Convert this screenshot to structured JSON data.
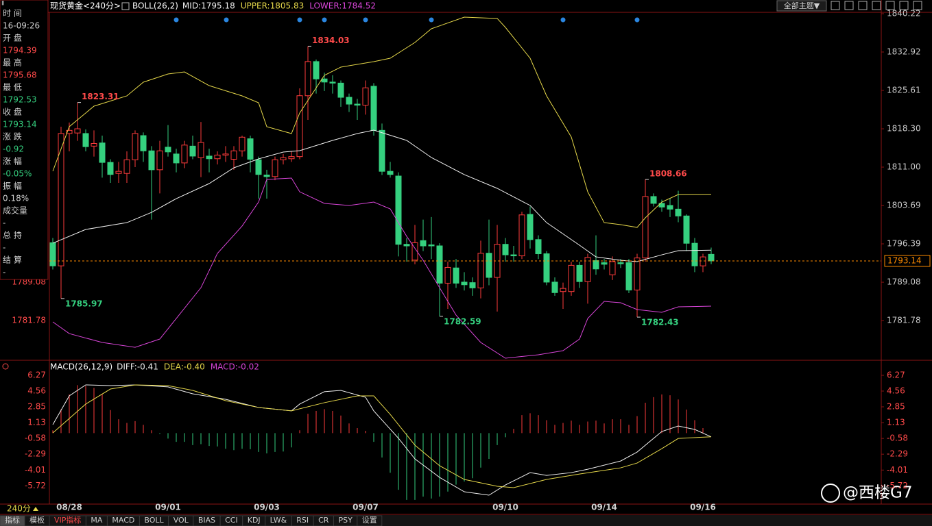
{
  "chart_data": [
    {
      "type": "candlestick",
      "title": "现货黄金<240分>",
      "indicator": "BOLL(26,2)",
      "categories": [
        null,
        null,
        "08/28",
        null,
        null,
        null,
        null,
        null,
        null,
        null,
        null,
        null,
        null,
        null,
        "09/01",
        null,
        null,
        null,
        null,
        null,
        null,
        null,
        null,
        null,
        null,
        null,
        "09/03",
        null,
        null,
        null,
        null,
        null,
        null,
        null,
        null,
        null,
        null,
        null,
        "09/07",
        null,
        null,
        null,
        null,
        null,
        null,
        null,
        null,
        null,
        null,
        null,
        null,
        null,
        null,
        null,
        null,
        "09/10",
        null,
        null,
        null,
        null,
        null,
        null,
        null,
        null,
        null,
        null,
        null,
        "09/14",
        null,
        null,
        null,
        null,
        null,
        null,
        null,
        null,
        null,
        null,
        null,
        "09/16",
        null
      ],
      "open": [
        1796.6,
        1792.2,
        1817.4,
        1817.5,
        1817.4,
        1815.0,
        1815.6,
        1811.9,
        1809.8,
        1809.8,
        1812.4,
        1817.0,
        1814.1,
        1810.5,
        1814.8,
        1813.5,
        1811.8,
        1815.0,
        1812.8,
        1813.1,
        1812.6,
        1813.3,
        1812.5,
        1814.1,
        1816.4,
        1812.4,
        1809.5,
        1809.2,
        1812.4,
        1812.6,
        1813.0,
        1824.6,
        1831.1,
        1827.8,
        1827.2,
        1827.0,
        1824.3,
        1823.0,
        1822.8,
        1826.4,
        1818.0,
        1810.2,
        1809.3,
        1796.3,
        1793.3,
        1797.0,
        1796.2,
        1796.0,
        1788.9,
        1791.8,
        1789.1,
        1789.0,
        1788.0,
        1794.6,
        1790.0,
        1796.3,
        1794.3,
        1794.1,
        1802.0,
        1797.2,
        1794.5,
        1789.1,
        1787.3,
        1787.3,
        1792.3,
        1789.2,
        1793.2,
        1792.8,
        1790.5,
        1792.8,
        1792.8,
        1787.6,
        1793.7,
        1805.4,
        1804.1,
        1803.7,
        1803.0,
        1801.7,
        1796.5,
        1792.2,
        1794.39
      ],
      "high": [
        1797.5,
        1818.7,
        1819.5,
        1823.31,
        1818.2,
        1818.0,
        1817.0,
        1812.5,
        1812.0,
        1814.0,
        1818.0,
        1817.6,
        1815.0,
        1816.0,
        1819.0,
        1814.5,
        1816.0,
        1817.0,
        1819.6,
        1814.5,
        1814.0,
        1815.0,
        1815.0,
        1817.0,
        1817.0,
        1813.0,
        1810.5,
        1813.0,
        1813.5,
        1814.0,
        1826.0,
        1834.03,
        1831.5,
        1829.0,
        1828.5,
        1827.5,
        1825.0,
        1824.0,
        1827.5,
        1827.0,
        1819.3,
        1812.0,
        1810.0,
        1797.5,
        1800.0,
        1801.0,
        1801.5,
        1796.5,
        1793.0,
        1793.5,
        1791.0,
        1790.0,
        1797.0,
        1801.0,
        1800.0,
        1797.5,
        1796.0,
        1802.5,
        1803.5,
        1798.0,
        1795.0,
        1790.0,
        1789.0,
        1793.0,
        1793.0,
        1794.5,
        1798.0,
        1793.5,
        1794.0,
        1793.5,
        1793.5,
        1794.5,
        1808.66,
        1806.0,
        1804.8,
        1805.0,
        1806.5,
        1802.0,
        1797.5,
        1794.5,
        1795.68
      ],
      "low": [
        1791.5,
        1785.97,
        1814.0,
        1816.0,
        1814.0,
        1813.0,
        1809.0,
        1808.0,
        1808.0,
        1808.0,
        1811.0,
        1812.0,
        1801.0,
        1806.0,
        1813.0,
        1810.0,
        1810.8,
        1812.5,
        1809.1,
        1810.0,
        1811.5,
        1812.0,
        1810.5,
        1813.0,
        1810.0,
        1805.0,
        1805.0,
        1808.5,
        1811.5,
        1812.0,
        1812.5,
        1820.0,
        1825.0,
        1825.5,
        1825.0,
        1822.5,
        1821.5,
        1820.0,
        1821.0,
        1817.0,
        1809.5,
        1809.0,
        1794.0,
        1793.0,
        1792.5,
        1795.0,
        1793.5,
        1782.59,
        1784.0,
        1788.0,
        1787.5,
        1786.5,
        1786.0,
        1788.5,
        1783.5,
        1793.0,
        1793.0,
        1793.5,
        1795.5,
        1793.5,
        1788.5,
        1786.5,
        1784.0,
        1786.5,
        1788.0,
        1785.0,
        1790.5,
        1791.5,
        1789.5,
        1791.8,
        1787.0,
        1782.43,
        1793.0,
        1803.5,
        1802.5,
        1801.5,
        1800.5,
        1795.0,
        1791.0,
        1791.0,
        1792.53
      ],
      "close": [
        1792.2,
        1817.4,
        1818.0,
        1818.3,
        1814.9,
        1815.5,
        1811.9,
        1809.6,
        1810.2,
        1812.4,
        1817.4,
        1814.1,
        1810.5,
        1814.1,
        1813.9,
        1811.8,
        1815.2,
        1813.1,
        1815.7,
        1812.6,
        1813.3,
        1813.5,
        1814.1,
        1816.7,
        1812.5,
        1809.6,
        1809.2,
        1812.4,
        1812.8,
        1813.0,
        1824.6,
        1831.1,
        1827.8,
        1827.2,
        1827.0,
        1824.3,
        1823.0,
        1822.8,
        1826.1,
        1818.0,
        1810.2,
        1809.6,
        1796.3,
        1796.0,
        1796.6,
        1796.0,
        1796.0,
        1788.9,
        1791.9,
        1788.9,
        1788.6,
        1788.0,
        1794.6,
        1790.0,
        1796.3,
        1794.3,
        1794.1,
        1801.9,
        1797.2,
        1794.5,
        1789.1,
        1787.1,
        1787.9,
        1792.3,
        1789.2,
        1793.8,
        1791.6,
        1792.5,
        1793.0,
        1792.6,
        1787.6,
        1793.7,
        1805.4,
        1804.1,
        1803.4,
        1803.0,
        1801.7,
        1796.5,
        1792.2,
        1793.9,
        1793.14
      ],
      "up_color": "#ff3c3c",
      "down_color": "#35d07f",
      "series": [
        {
          "name": "MID:1795.18",
          "color": "#f0f0f0",
          "x": [
            0,
            4,
            9,
            12,
            15,
            19,
            22,
            25,
            28,
            30,
            34,
            37,
            39,
            43,
            46,
            50,
            54,
            58,
            60,
            64,
            66,
            69,
            71,
            74,
            76,
            80
          ],
          "values": [
            1796.52,
            1799.13,
            1800.43,
            1802.39,
            1805.0,
            1807.87,
            1810.87,
            1812.57,
            1813.87,
            1814.13,
            1816.09,
            1817.39,
            1818.04,
            1816.09,
            1812.83,
            1809.57,
            1806.96,
            1803.7,
            1800.43,
            1796.13,
            1793.91,
            1793.26,
            1793.0,
            1794.3,
            1795.09,
            1795.18
          ]
        },
        {
          "name": "UPPER:1805.83",
          "color": "#e6d84a",
          "x": [
            0,
            2,
            5,
            9,
            11,
            14,
            16,
            19,
            23,
            25,
            26,
            29,
            30,
            33,
            35,
            39,
            41,
            44,
            46,
            50,
            54,
            55,
            58,
            60,
            63,
            65,
            67,
            69,
            71,
            72,
            74,
            76,
            80
          ],
          "values": [
            1810.22,
            1818.7,
            1822.61,
            1824.57,
            1827.18,
            1828.74,
            1829.13,
            1826.52,
            1824.57,
            1823.26,
            1818.7,
            1817.39,
            1821.31,
            1828.48,
            1830.05,
            1831.09,
            1831.74,
            1834.74,
            1837.35,
            1839.57,
            1839.31,
            1837.61,
            1831.74,
            1824.57,
            1816.74,
            1806.3,
            1800.43,
            1800.04,
            1799.52,
            1801.35,
            1804.35,
            1805.78,
            1805.83
          ]
        },
        {
          "name": "LOWER:1784.52",
          "color": "#d845d8",
          "x": [
            0,
            2,
            6,
            10,
            13,
            15,
            18,
            20,
            23,
            25,
            26,
            29,
            30,
            33,
            36,
            39,
            41,
            43,
            45,
            49,
            52,
            55,
            59,
            62,
            64,
            65,
            67,
            69,
            71,
            74,
            76,
            80
          ],
          "values": [
            1781.52,
            1779.3,
            1777.61,
            1776.69,
            1778.26,
            1782.17,
            1788.04,
            1794.56,
            1799.78,
            1804.35,
            1808.65,
            1808.91,
            1806.3,
            1804.09,
            1803.7,
            1804.35,
            1803.04,
            1797.82,
            1793.26,
            1782.82,
            1777.61,
            1774.61,
            1775.26,
            1776.04,
            1778.26,
            1782.17,
            1785.43,
            1785.17,
            1783.87,
            1783.35,
            1784.39,
            1784.52
          ]
        }
      ],
      "extremes": [
        1823.31,
        1834.03,
        1808.66,
        1785.97,
        1782.59,
        1782.43
      ],
      "ylim": [
        1774.35,
        1840.48
      ],
      "yticks": [
        1840.22,
        1832.92,
        1825.61,
        {
          "value": 1818.3,
          "label": "1818.30"
        },
        {
          "value": 1811,
          "label": "1811.00"
        },
        1803.69,
        1796.39,
        1789.08,
        1781.78
      ],
      "grid": false
    },
    {
      "type": "macd",
      "title": "MACD(26,12,9)",
      "histogram": {
        "name": "MACD:-0.02",
        "color": "#d845d8",
        "pos_color": "#ff3c3c",
        "neg_color": "#35d07f",
        "values": [
          0.3,
          2.6,
          4.2,
          5.2,
          5.1,
          4.9,
          4.2,
          2.5,
          1.5,
          1.1,
          1.3,
          0.9,
          0.3,
          -0.1,
          -0.6,
          -0.95,
          -0.95,
          -1.3,
          -1.2,
          -1.4,
          -1.45,
          -1.7,
          -1.85,
          -1.7,
          -1.75,
          -2.05,
          -2.2,
          -2.05,
          -2.0,
          -1.55,
          0.3,
          2.1,
          2.4,
          2.6,
          2.4,
          1.9,
          1.05,
          0.55,
          0.25,
          -0.95,
          -2.65,
          -4.3,
          -6.15,
          -7.25,
          -7.25,
          -6.9,
          -7.1,
          -6.9,
          -6.35,
          -5.6,
          -5.25,
          -4.9,
          -3.75,
          -2.8,
          -1.3,
          -0.45,
          0.45,
          1.95,
          2.15,
          1.95,
          1.4,
          0.9,
          1.1,
          1.35,
          0.9,
          1.25,
          1.35,
          1.05,
          1.5,
          1.5,
          0.9,
          1.85,
          3.3,
          3.9,
          4.2,
          4.1,
          3.65,
          2.55,
          1.4,
          0.55,
          -0.02
        ]
      },
      "series": [
        {
          "name": "DIFF:-0.41",
          "color": "#f0f0f0",
          "x": [
            0,
            2,
            4,
            7,
            10,
            14,
            17,
            21,
            25,
            29,
            30,
            33,
            35,
            38,
            39,
            42,
            44,
            47,
            50,
            53,
            55,
            58,
            60,
            63,
            65,
            69,
            71,
            74,
            76,
            78,
            80
          ],
          "values": [
            0.92,
            4.04,
            5.23,
            5.15,
            5.23,
            5.01,
            4.26,
            3.67,
            2.78,
            2.41,
            3.15,
            4.49,
            4.63,
            3.89,
            2.41,
            -0.56,
            -2.8,
            -4.81,
            -6.37,
            -6.74,
            -5.63,
            -4.29,
            -4.59,
            -4.29,
            -3.92,
            -3.03,
            -2.06,
            0.17,
            0.77,
            0.4,
            -0.41
          ]
        },
        {
          "name": "DEA:-0.40",
          "color": "#e6d84a",
          "x": [
            0,
            4,
            7,
            10,
            14,
            17,
            21,
            25,
            29,
            33,
            37,
            39,
            41,
            44,
            47,
            50,
            54,
            56,
            60,
            64,
            69,
            71,
            74,
            76,
            80
          ],
          "values": [
            0.02,
            3.15,
            4.78,
            5.23,
            5.15,
            4.63,
            3.52,
            2.78,
            2.41,
            3.3,
            4.04,
            4.04,
            2.03,
            -1.31,
            -3.54,
            -5.03,
            -5.77,
            -5.92,
            -5.03,
            -4.44,
            -3.77,
            -3.25,
            -1.69,
            -0.58,
            -0.4
          ]
        }
      ],
      "ylim": [
        -7.63,
        6.64
      ],
      "yticks": [
        6.27,
        4.56,
        2.85,
        1.13,
        -0.58,
        -2.29,
        -4.01,
        -5.72
      ],
      "grid": false
    }
  ],
  "header": {
    "theme_button": "全部主题▼"
  },
  "info_panel": [
    {
      "label": "时 间",
      "value": "16-09:26",
      "color": "#d0d0d0"
    },
    {
      "label": "开 盘",
      "value": "1794.39",
      "color": "#ff4a4a"
    },
    {
      "label": "最 高",
      "value": "1795.68",
      "color": "#ff4a4a"
    },
    {
      "label": "最 低",
      "value": "1792.53",
      "color": "#35d07f"
    },
    {
      "label": "收 盘",
      "value": "1793.14",
      "color": "#35d07f"
    },
    {
      "label": "涨 跌",
      "value": "-0.92",
      "color": "#35d07f"
    },
    {
      "label": "涨 幅",
      "value": "-0.05%",
      "color": "#35d07f"
    },
    {
      "label": "振 幅",
      "value": "0.18%",
      "color": "#d0d0d0"
    },
    {
      "label": "成交量",
      "value": "-",
      "color": "#d0d0d0"
    },
    {
      "label": "总 持",
      "value": "-",
      "color": "#d0d0d0"
    },
    {
      "label": "结 算",
      "value": "-",
      "color": "#d0d0d0"
    }
  ],
  "toolbar": {
    "period": "240分",
    "tabs": [
      "指标",
      "模板",
      "VIP指标",
      "MA",
      "MACD",
      "BOLL",
      "VOL",
      "BIAS",
      "CCI",
      "KDJ",
      "LW&",
      "RSI",
      "CR",
      "PSY",
      "设置"
    ]
  },
  "watermark": "@西楼G7"
}
